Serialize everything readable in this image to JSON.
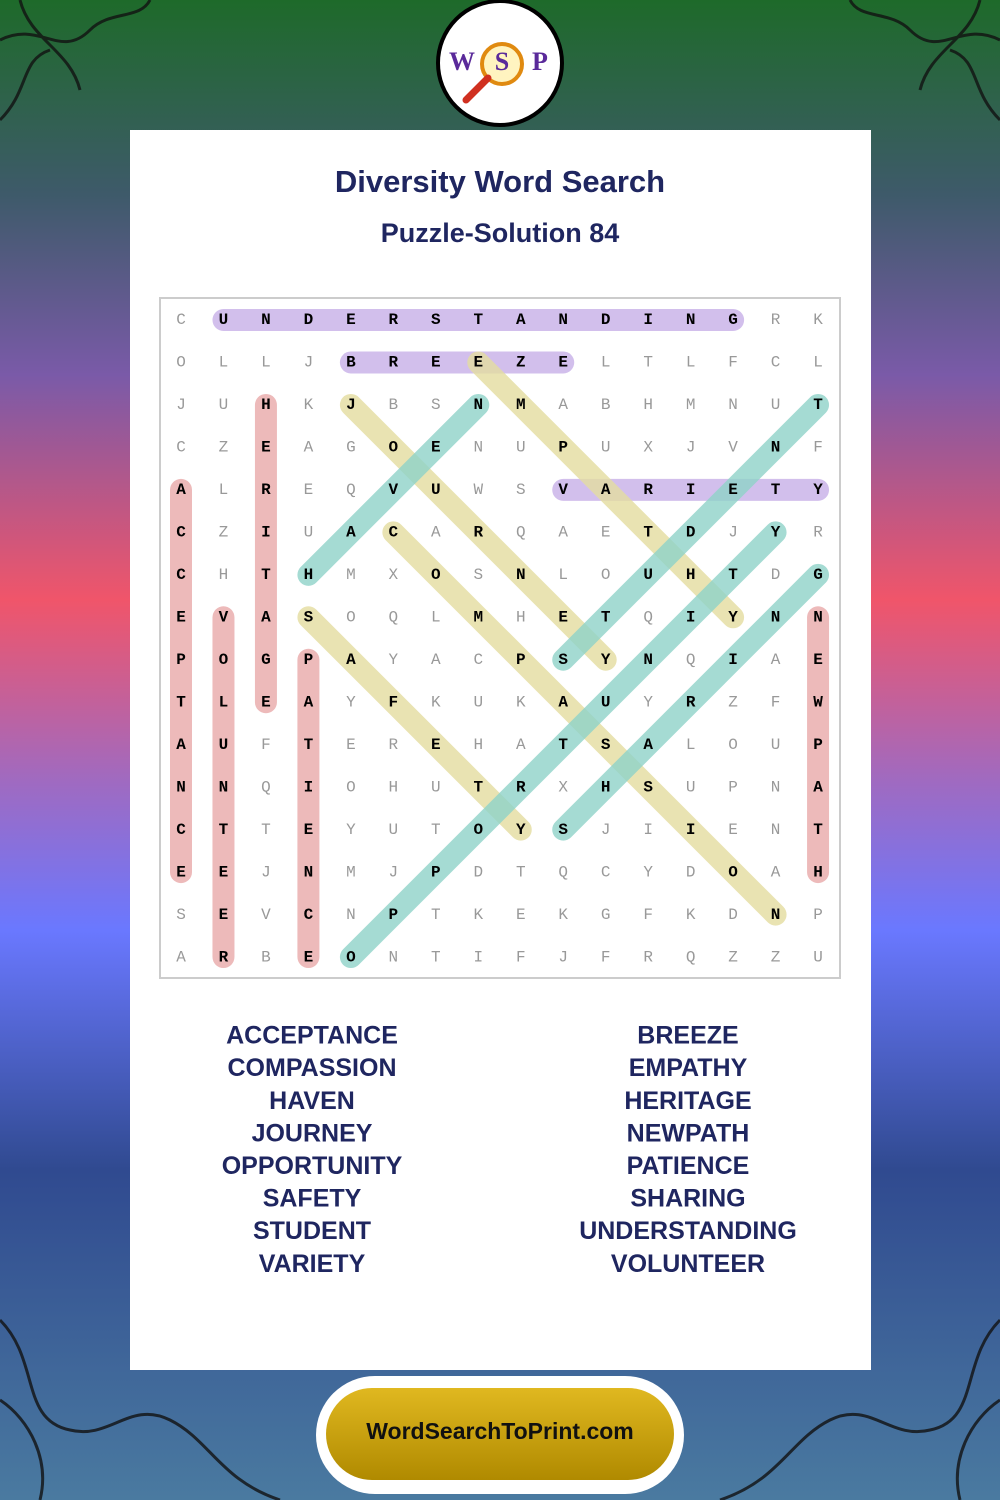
{
  "logo": {
    "letters": [
      "W",
      "S",
      "P"
    ]
  },
  "header": {
    "title": "Diversity Word Search",
    "subtitle": "Puzzle-Solution 84"
  },
  "grid": {
    "rows": [
      [
        "C",
        "U",
        "N",
        "D",
        "E",
        "R",
        "S",
        "T",
        "A",
        "N",
        "D",
        "I",
        "N",
        "G",
        "R",
        "K"
      ],
      [
        "O",
        "L",
        "L",
        "J",
        "B",
        "R",
        "E",
        "E",
        "Z",
        "E",
        "L",
        "T",
        "L",
        "F",
        "C",
        "L"
      ],
      [
        "J",
        "U",
        "H",
        "K",
        "J",
        "B",
        "S",
        "N",
        "M",
        "A",
        "B",
        "H",
        "M",
        "N",
        "U",
        "T"
      ],
      [
        "C",
        "Z",
        "E",
        "A",
        "G",
        "O",
        "E",
        "N",
        "U",
        "P",
        "U",
        "X",
        "J",
        "V",
        "N",
        "F"
      ],
      [
        "A",
        "L",
        "R",
        "E",
        "Q",
        "V",
        "U",
        "W",
        "S",
        "V",
        "A",
        "R",
        "I",
        "E",
        "T",
        "Y"
      ],
      [
        "C",
        "Z",
        "I",
        "U",
        "A",
        "C",
        "A",
        "R",
        "Q",
        "A",
        "E",
        "T",
        "D",
        "J",
        "Y",
        "R"
      ],
      [
        "C",
        "H",
        "T",
        "H",
        "M",
        "X",
        "O",
        "S",
        "N",
        "L",
        "O",
        "U",
        "H",
        "T",
        "D",
        "G"
      ],
      [
        "E",
        "V",
        "A",
        "S",
        "O",
        "Q",
        "L",
        "M",
        "H",
        "E",
        "T",
        "Q",
        "I",
        "Y",
        "N",
        "N"
      ],
      [
        "P",
        "O",
        "G",
        "P",
        "A",
        "Y",
        "A",
        "C",
        "P",
        "S",
        "Y",
        "N",
        "Q",
        "I",
        "A",
        "E"
      ],
      [
        "T",
        "L",
        "E",
        "A",
        "Y",
        "F",
        "K",
        "U",
        "K",
        "A",
        "U",
        "Y",
        "R",
        "Z",
        "F",
        "W"
      ],
      [
        "A",
        "U",
        "F",
        "T",
        "E",
        "R",
        "E",
        "H",
        "A",
        "T",
        "S",
        "A",
        "L",
        "O",
        "U",
        "P"
      ],
      [
        "N",
        "N",
        "Q",
        "I",
        "O",
        "H",
        "U",
        "T",
        "R",
        "X",
        "H",
        "S",
        "U",
        "P",
        "N",
        "A"
      ],
      [
        "C",
        "T",
        "T",
        "E",
        "Y",
        "U",
        "T",
        "O",
        "Y",
        "S",
        "J",
        "I",
        "I",
        "E",
        "N",
        "T"
      ],
      [
        "E",
        "E",
        "J",
        "N",
        "M",
        "J",
        "P",
        "D",
        "T",
        "Q",
        "C",
        "Y",
        "D",
        "O",
        "A",
        "H"
      ],
      [
        "S",
        "E",
        "V",
        "C",
        "N",
        "P",
        "T",
        "K",
        "E",
        "K",
        "G",
        "F",
        "K",
        "D",
        "N",
        "P"
      ],
      [
        "A",
        "R",
        "B",
        "E",
        "O",
        "N",
        "T",
        "I",
        "F",
        "J",
        "F",
        "R",
        "Q",
        "Z",
        "Z",
        "U"
      ]
    ]
  },
  "words": {
    "left": [
      "ACCEPTANCE",
      "COMPASSION",
      "HAVEN",
      "JOURNEY",
      "OPPORTUNITY",
      "SAFETY",
      "STUDENT",
      "VARIETY"
    ],
    "right": [
      "BREEZE",
      "EMPATHY",
      "HERITAGE",
      "NEWPATH",
      "PATIENCE",
      "SHARING",
      "UNDERSTANDING",
      "VOLUNTEER"
    ]
  },
  "footer": {
    "site": "WordSearchToPrint.com"
  }
}
